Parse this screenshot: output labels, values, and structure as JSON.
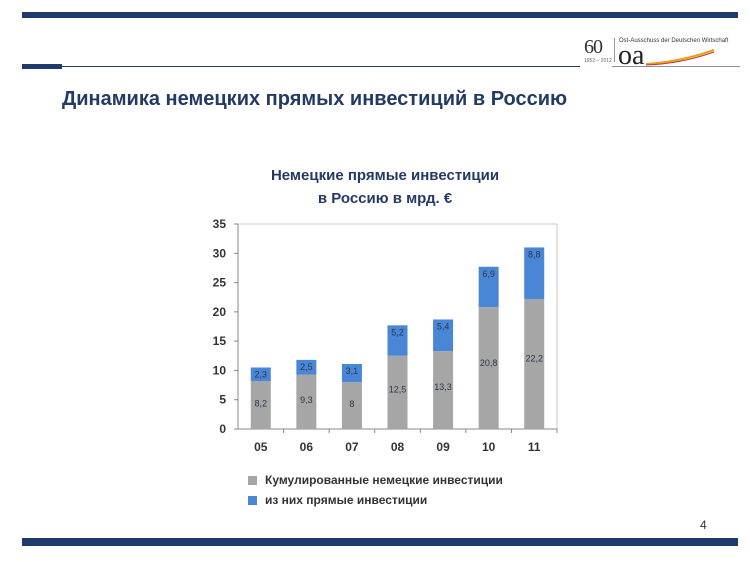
{
  "slide": {
    "title": "Динамика немецких прямых инвестиций в Россию",
    "page_number": "4"
  },
  "logo": {
    "anniversary": "60",
    "years": "1952 – 2012",
    "org_name": "Ost-Ausschuss der Deutschen Wirtschaft",
    "mark": "oa"
  },
  "colors": {
    "navy": "#1f3b6e",
    "title_blue": "#243a66",
    "cumulative_gray": "#a6a6a6",
    "direct_blue": "#4a86d6"
  },
  "chart_data": {
    "type": "bar",
    "stacked": true,
    "title_lines": [
      "Немецкие прямые инвестиции",
      "в Россию в мрд. €"
    ],
    "categories": [
      "05",
      "06",
      "07",
      "08",
      "09",
      "10",
      "11"
    ],
    "series": [
      {
        "name": "Кумулированные немецкие инвестиции",
        "color": "#a6a6a6",
        "values": [
          8.2,
          9.3,
          8,
          12.5,
          13.3,
          20.8,
          22.2
        ],
        "labels": [
          "8,2",
          "9,3",
          "8",
          "12,5",
          "13,3",
          "20,8",
          "22,2"
        ]
      },
      {
        "name": "из них прямые инвестиции",
        "color": "#4a86d6",
        "values": [
          2.3,
          2.5,
          3.1,
          5.2,
          5.4,
          6.9,
          8.8
        ],
        "labels": [
          "2,3",
          "2,5",
          "3,1",
          "5,2",
          "5,4",
          "6,9",
          "8,8"
        ]
      }
    ],
    "y_ticks": [
      0,
      5,
      10,
      15,
      20,
      25,
      30,
      35
    ],
    "ylim": [
      0,
      35
    ],
    "grid": false,
    "legend_position": "bottom-left"
  }
}
